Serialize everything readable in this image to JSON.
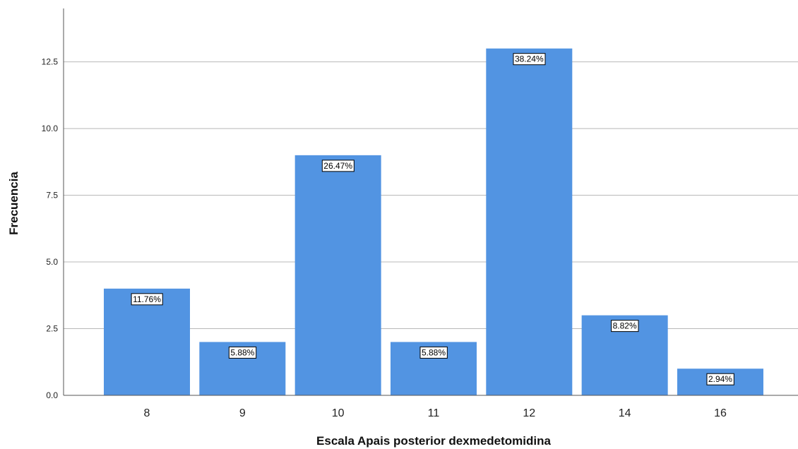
{
  "chart_data": {
    "type": "bar",
    "xlabel": "Escala Apais posterior dexmedetomidina",
    "ylabel": "Frecuencia",
    "categories": [
      "8",
      "9",
      "10",
      "11",
      "12",
      "14",
      "16"
    ],
    "values": [
      4,
      2,
      9,
      2,
      13,
      3,
      1
    ],
    "data_labels": [
      "11.76%",
      "5.88%",
      "26.47%",
      "5.88%",
      "38.24%",
      "8.82%",
      "2.94%"
    ],
    "ylim": [
      0,
      14.5
    ],
    "yticks": [
      "0.0",
      "2.5",
      "5.0",
      "7.5",
      "10.0",
      "12.5"
    ],
    "grid": true,
    "bar_color": "#5294e2",
    "grid_color": "#b8b8b8",
    "axis_color": "#555555"
  }
}
